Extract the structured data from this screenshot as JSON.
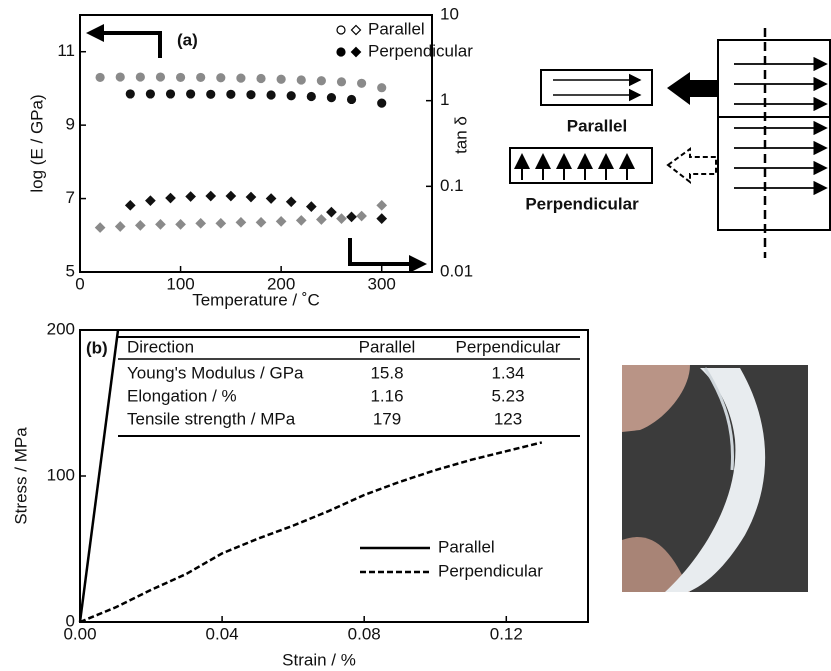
{
  "chart_data": [
    {
      "type": "scatter",
      "annotation": "(a)",
      "xlabel": "Temperature / ˚C",
      "ylabel": "log (E / GPa)",
      "y2label": "tan δ",
      "xlim": [
        0,
        350
      ],
      "ylim": [
        5,
        12
      ],
      "y2lim": [
        0.01,
        10
      ],
      "y2log": true,
      "xticks": [
        0,
        100,
        200,
        300
      ],
      "yticks": [
        5,
        7,
        9,
        11
      ],
      "y2ticks": [
        0.01,
        0.1,
        1,
        10
      ],
      "series": [
        {
          "name": "Parallel",
          "color": "#8a8a8a",
          "marker": "circle",
          "axis": "y",
          "x": [
            20,
            40,
            60,
            80,
            100,
            120,
            140,
            160,
            180,
            200,
            220,
            240,
            260,
            280,
            300
          ],
          "values": [
            10.3,
            10.31,
            10.31,
            10.31,
            10.3,
            10.3,
            10.29,
            10.28,
            10.27,
            10.25,
            10.23,
            10.21,
            10.18,
            10.14,
            10.02
          ]
        },
        {
          "name": "Perpendicular",
          "color": "#111111",
          "marker": "circle",
          "axis": "y",
          "x": [
            50,
            70,
            90,
            110,
            130,
            150,
            170,
            190,
            210,
            230,
            250,
            270,
            300
          ],
          "values": [
            9.85,
            9.85,
            9.85,
            9.85,
            9.84,
            9.84,
            9.83,
            9.82,
            9.8,
            9.78,
            9.75,
            9.7,
            9.6
          ]
        },
        {
          "color": "#8a8a8a",
          "marker": "diamond",
          "axis": "y2",
          "x": [
            20,
            40,
            60,
            80,
            100,
            120,
            140,
            160,
            180,
            200,
            220,
            240,
            260,
            280,
            300
          ],
          "values": [
            0.033,
            0.034,
            0.035,
            0.036,
            0.036,
            0.037,
            0.037,
            0.038,
            0.038,
            0.039,
            0.04,
            0.041,
            0.042,
            0.045,
            0.06
          ]
        },
        {
          "color": "#111111",
          "marker": "diamond",
          "axis": "y2",
          "x": [
            50,
            70,
            90,
            110,
            130,
            150,
            170,
            190,
            210,
            230,
            250,
            270,
            300
          ],
          "values": [
            0.06,
            0.068,
            0.073,
            0.076,
            0.077,
            0.077,
            0.075,
            0.072,
            0.066,
            0.058,
            0.05,
            0.044,
            0.042
          ]
        }
      ]
    },
    {
      "type": "line",
      "annotation": "(b)",
      "xlabel": "Strain / %",
      "ylabel": "Stress / MPa",
      "xlim": [
        0,
        0.143
      ],
      "ylim": [
        0,
        200
      ],
      "xticks": [
        {
          "value": 0,
          "label": "0.00"
        },
        0.04,
        0.08,
        0.12
      ],
      "yticks": [
        0,
        100,
        200
      ],
      "series": [
        {
          "name": "Parallel",
          "color": "#000000",
          "linestyle": "solid",
          "x": [
            0,
            0.0107
          ],
          "values": [
            0,
            200
          ]
        },
        {
          "name": "Perpendicular",
          "color": "#000000",
          "linestyle": "dashed",
          "x": [
            0,
            0.005,
            0.01,
            0.02,
            0.03,
            0.04,
            0.05,
            0.06,
            0.07,
            0.08,
            0.09,
            0.1,
            0.11,
            0.12,
            0.13
          ],
          "values": [
            0,
            5,
            10,
            22,
            33,
            47,
            57,
            66,
            76,
            87,
            96,
            104,
            111,
            117,
            123
          ]
        }
      ],
      "table": {
        "header": [
          "Direction",
          "Parallel",
          "Perpendicular"
        ],
        "rows": [
          [
            "Young's Modulus / GPa",
            "15.8",
            "1.34"
          ],
          [
            "Elongation / %",
            "1.16",
            "5.23"
          ],
          [
            "Tensile strength / MPa",
            "179",
            "123"
          ]
        ]
      }
    }
  ],
  "diagram": {
    "parallel_label": "Parallel",
    "perpendicular_label": "Perpendicular"
  }
}
